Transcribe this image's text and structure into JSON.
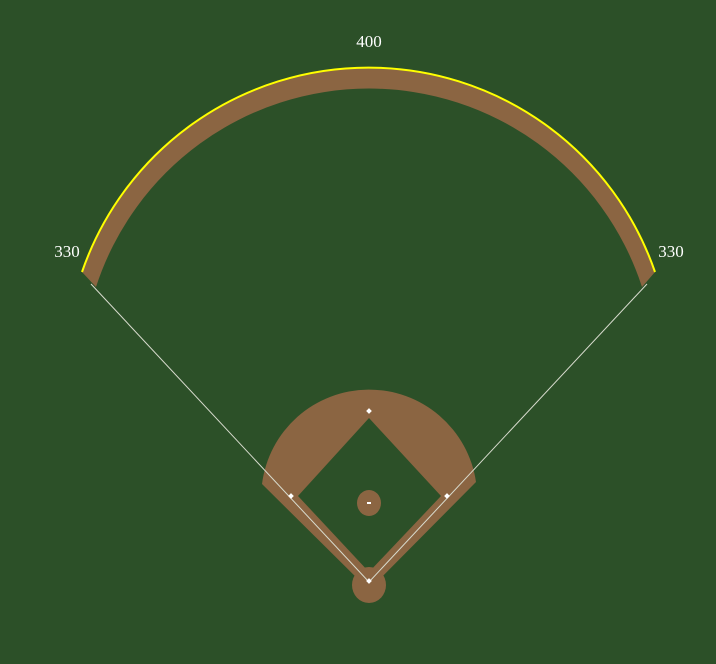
{
  "colors": {
    "grass": "#2c5028",
    "dirt": "#8b6542",
    "foul_line": "#d9dccf",
    "fence": "#ffff00",
    "base": "#ffffff",
    "label": "#ffffff"
  },
  "distances": {
    "left_field": "330",
    "center_field": "400",
    "right_field": "330"
  }
}
